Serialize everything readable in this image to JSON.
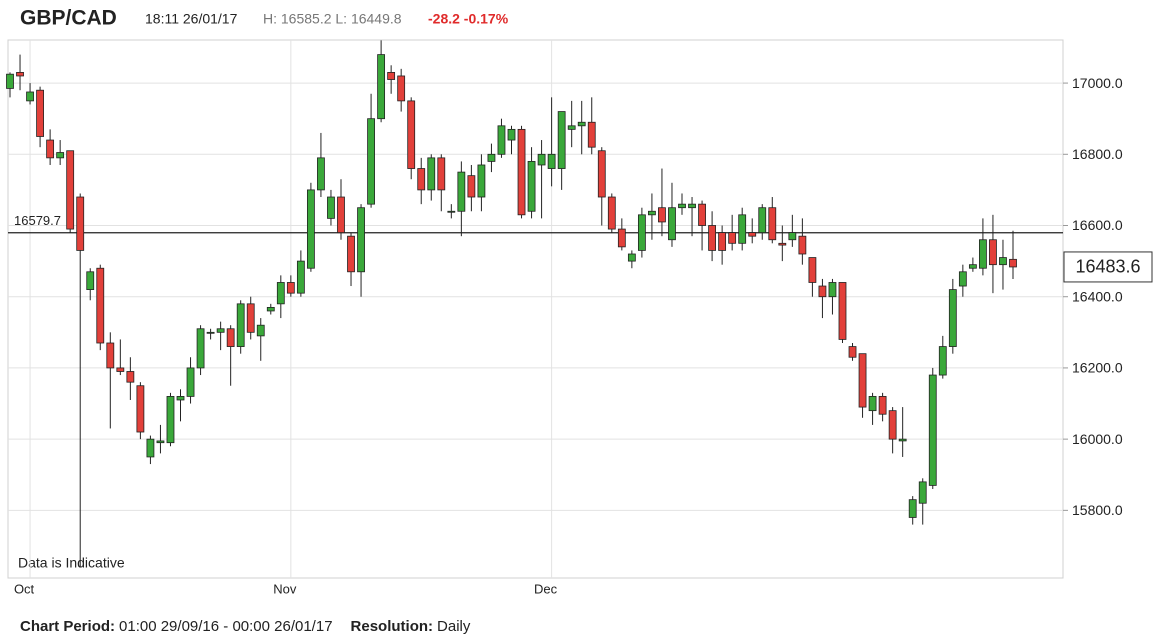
{
  "chart_data": {
    "type": "candlestick",
    "title": "GBP/CAD",
    "timestamp": "18:11 26/01/17",
    "high_low": "H: 16585.2 L: 16449.8",
    "change": "-28.2 -0.17%",
    "annotation": "Data is Indicative",
    "reference_line": 16579.7,
    "last_price": 16483.6,
    "up_color": "#3aa83a",
    "down_color": "#e2403a",
    "grid": true,
    "categories": [
      null,
      null,
      "Oct",
      null,
      null,
      null,
      null,
      null,
      null,
      null,
      null,
      null,
      null,
      null,
      null,
      null,
      null,
      null,
      null,
      null,
      null,
      null,
      null,
      null,
      null,
      null,
      null,
      null,
      "Nov",
      null,
      null,
      null,
      null,
      null,
      null,
      null,
      null,
      null,
      null,
      null,
      null,
      null,
      null,
      null,
      null,
      null,
      null,
      null,
      null,
      null,
      null,
      null,
      null,
      null,
      "Dec",
      null,
      null,
      null,
      null,
      null,
      null,
      null,
      null,
      null,
      null,
      null,
      null,
      null,
      null,
      null,
      null,
      null,
      null,
      null,
      null,
      null,
      null,
      null,
      null,
      null,
      null,
      null,
      null,
      null,
      null,
      null,
      null,
      null,
      null,
      null,
      null,
      null,
      null,
      null,
      null,
      null,
      null,
      null,
      null,
      null,
      null
    ],
    "open": [
      16985,
      17030,
      16950,
      16980,
      16840,
      16790,
      16810,
      16680,
      16420,
      16480,
      16270,
      16200,
      16190,
      16150,
      15950,
      15990,
      15990,
      16110,
      16120,
      16200,
      16300,
      16300,
      16310,
      16260,
      16380,
      16290,
      16360,
      16380,
      16440,
      16410,
      16480,
      16700,
      16620,
      16680,
      16570,
      16470,
      16660,
      16900,
      17030,
      17020,
      16950,
      16760,
      16700,
      16790,
      16640,
      16640,
      16740,
      16680,
      16780,
      16800,
      16840,
      16870,
      16640,
      16770,
      16760,
      16760,
      16870,
      16880,
      16890,
      16810,
      16680,
      16590,
      16500,
      16530,
      16630,
      16650,
      16560,
      16650,
      16650,
      16660,
      16600,
      16580,
      16580,
      16550,
      16580,
      16580,
      16650,
      16550,
      16560,
      16570,
      16510,
      16430,
      16400,
      16440,
      16260,
      16240,
      16080,
      16120,
      16080,
      15995,
      15780,
      15820,
      15870,
      16180,
      16260,
      16430,
      16480,
      16480,
      16560,
      16490,
      16505
    ],
    "high": [
      17030,
      17080,
      17000,
      16990,
      16870,
      16840,
      16810,
      16690,
      16480,
      16490,
      16300,
      16280,
      16230,
      16160,
      16010,
      16040,
      16130,
      16140,
      16230,
      16320,
      16310,
      16330,
      16320,
      16390,
      16400,
      16340,
      16380,
      16460,
      16460,
      16530,
      16720,
      16860,
      16700,
      16730,
      16580,
      16660,
      16970,
      17120,
      17050,
      17040,
      16960,
      16790,
      16800,
      16800,
      16660,
      16780,
      16770,
      16800,
      16830,
      16900,
      16880,
      16880,
      16820,
      16840,
      16960,
      16920,
      16950,
      16950,
      16960,
      16820,
      16690,
      16620,
      16530,
      16650,
      16690,
      16760,
      16720,
      16690,
      16680,
      16670,
      16640,
      16600,
      16630,
      16650,
      16620,
      16660,
      16680,
      16600,
      16630,
      16620,
      16510,
      16450,
      16450,
      16440,
      16270,
      16240,
      16130,
      16130,
      16090,
      16090,
      15840,
      15890,
      16200,
      16290,
      16450,
      16490,
      16510,
      16620,
      16630,
      16560,
      16585.2
    ],
    "low": [
      16960,
      16980,
      16940,
      16820,
      16770,
      16770,
      16580,
      15640,
      16390,
      16250,
      16030,
      16180,
      16110,
      16000,
      15930,
      15960,
      15980,
      16050,
      16100,
      16180,
      16280,
      16250,
      16150,
      16240,
      16280,
      16220,
      16350,
      16340,
      16400,
      16400,
      16470,
      16680,
      16600,
      16560,
      16430,
      16400,
      16650,
      16890,
      16970,
      16920,
      16730,
      16660,
      16670,
      16640,
      16620,
      16570,
      16640,
      16640,
      16750,
      16790,
      16800,
      16620,
      16620,
      16620,
      16710,
      16700,
      16820,
      16800,
      16800,
      16600,
      16580,
      16530,
      16480,
      16510,
      16560,
      16570,
      16540,
      16630,
      16570,
      16530,
      16500,
      16490,
      16530,
      16530,
      16550,
      16560,
      16550,
      16500,
      16540,
      16490,
      16400,
      16340,
      16350,
      16270,
      16220,
      16060,
      16040,
      16050,
      15960,
      15950,
      15760,
      15760,
      15860,
      16170,
      16240,
      16400,
      16470,
      16460,
      16410,
      16420,
      16449.8
    ],
    "close": [
      17025,
      17020,
      16975,
      16850,
      16790,
      16805,
      16590,
      16530,
      16470,
      16270,
      16200,
      16190,
      16160,
      16020,
      16000,
      15995,
      16120,
      16120,
      16200,
      16310,
      16300,
      16310,
      16260,
      16380,
      16300,
      16320,
      16370,
      16440,
      16410,
      16500,
      16700,
      16790,
      16680,
      16580,
      16470,
      16650,
      16900,
      17080,
      17010,
      16950,
      16760,
      16700,
      16790,
      16700,
      16640,
      16750,
      16680,
      16770,
      16800,
      16880,
      16870,
      16630,
      16780,
      16800,
      16800,
      16920,
      16880,
      16890,
      16820,
      16680,
      16590,
      16540,
      16520,
      16630,
      16640,
      16610,
      16650,
      16660,
      16660,
      16600,
      16530,
      16530,
      16550,
      16630,
      16570,
      16650,
      16560,
      16545,
      16580,
      16520,
      16440,
      16400,
      16440,
      16280,
      16230,
      16090,
      16120,
      16070,
      16000,
      16000,
      15830,
      15880,
      16180,
      16260,
      16420,
      16470,
      16490,
      16560,
      16490,
      16510,
      16483.6
    ],
    "ylim": [
      15610,
      17121
    ],
    "yticks": [
      {
        "value": 15800,
        "label": "15800.0"
      },
      {
        "value": 16000,
        "label": "16000.0"
      },
      {
        "value": 16200,
        "label": "16200.0"
      },
      {
        "value": 16400,
        "label": "16400.0"
      },
      {
        "value": 16600,
        "label": "16600.0"
      },
      {
        "value": 16800,
        "label": "16800.0"
      },
      {
        "value": 17000,
        "label": "17000.0"
      }
    ],
    "footer": [
      {
        "label": "Chart Period:",
        "value": "01:00 29/09/16 - 00:00 26/01/17"
      },
      {
        "label": "Resolution:",
        "value": "Daily"
      }
    ]
  }
}
